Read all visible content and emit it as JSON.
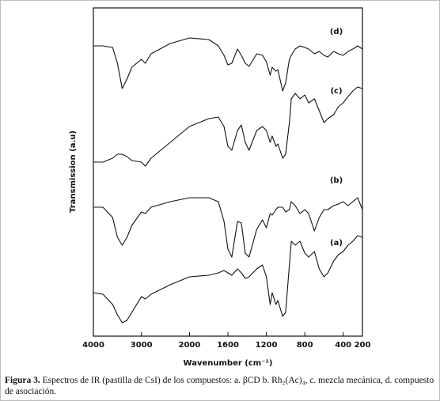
{
  "chart_data": {
    "type": "line",
    "xlabel": "Wavenumber (cm⁻¹)",
    "ylabel": "Transmission (a.u)",
    "x": [
      4000,
      3800,
      3600,
      3500,
      3400,
      3300,
      3200,
      3000,
      2920,
      2800,
      2400,
      2000,
      1800,
      1700,
      1640,
      1600,
      1560,
      1500,
      1460,
      1420,
      1380,
      1300,
      1240,
      1200,
      1160,
      1140,
      1100,
      1080,
      1030,
      1000,
      960,
      940,
      900,
      850,
      800,
      760,
      700,
      650,
      600,
      560,
      500,
      450,
      400,
      350,
      300,
      250,
      200
    ],
    "xlim": [
      4000,
      200
    ],
    "xbreak": 2000,
    "xticks": [
      4000,
      3000,
      2000,
      1600,
      1200,
      800,
      400,
      200
    ],
    "ylim": [
      0,
      415
    ],
    "series": [
      {
        "name": "(d)",
        "color": "#111111",
        "values": [
          367,
          367,
          365,
          345,
          313,
          325,
          340,
          350,
          345,
          357,
          370,
          377,
          375,
          367,
          355,
          343,
          345,
          363,
          355,
          345,
          341,
          357,
          355,
          347,
          330,
          340,
          335,
          337,
          310,
          320,
          350,
          355,
          363,
          367,
          365,
          363,
          357,
          360,
          355,
          353,
          360,
          357,
          355,
          360,
          363,
          367,
          363
        ]
      },
      {
        "name": "(c)",
        "color": "#111111",
        "values": [
          220,
          220,
          225,
          230,
          230,
          227,
          222,
          220,
          215,
          225,
          245,
          265,
          275,
          277,
          265,
          240,
          235,
          260,
          267,
          245,
          235,
          260,
          265,
          260,
          245,
          253,
          240,
          243,
          225,
          230,
          270,
          300,
          307,
          300,
          305,
          295,
          300,
          285,
          270,
          275,
          280,
          290,
          295,
          303,
          310,
          315,
          313
        ]
      },
      {
        "name": "(b)",
        "color": "#111111",
        "values": [
          163,
          163,
          150,
          125,
          115,
          125,
          140,
          157,
          155,
          163,
          170,
          175,
          175,
          170,
          145,
          110,
          100,
          145,
          143,
          105,
          100,
          135,
          147,
          137,
          155,
          153,
          160,
          163,
          163,
          157,
          160,
          170,
          165,
          155,
          160,
          155,
          133,
          150,
          160,
          160,
          165,
          167,
          170,
          165,
          170,
          175,
          160
        ]
      },
      {
        "name": "(a)",
        "color": "#111111",
        "values": [
          55,
          53,
          40,
          27,
          17,
          20,
          30,
          50,
          47,
          53,
          65,
          75,
          77,
          80,
          83,
          80,
          77,
          85,
          80,
          73,
          75,
          85,
          90,
          75,
          40,
          55,
          40,
          45,
          25,
          30,
          90,
          120,
          115,
          120,
          105,
          100,
          107,
          85,
          75,
          80,
          95,
          103,
          107,
          115,
          120,
          127,
          125
        ]
      }
    ]
  },
  "caption": {
    "label": "Figura 3.",
    "text": "Espectros de IR (pastilla de CsI) de los compuestos: a. βCD b. Rh₂(Ac)₄, c. mezcla mecánica, d. compuesto de asociación."
  }
}
